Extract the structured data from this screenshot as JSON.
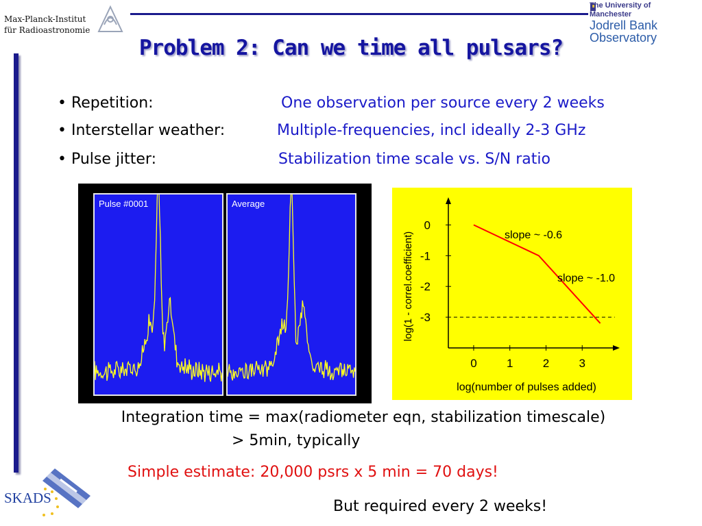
{
  "header": {
    "institute_line1": "Max-Planck-Institut",
    "institute_line2": "für Radioastronomie",
    "university": "The University of Manchester",
    "observatory_line1": "Jodrell Bank",
    "observatory_line2": "Observatory"
  },
  "title": "Problem 2: Can we time all pulsars?",
  "bullets": [
    {
      "label": "• Repetition:",
      "value": "One observation per source every 2 weeks"
    },
    {
      "label": "• Interstellar weather:",
      "value": "Multiple-frequencies, incl ideally  2-3 GHz"
    },
    {
      "label": "• Pulse jitter:",
      "value": "Stabilization time scale vs. S/N ratio"
    }
  ],
  "pulse_panels": {
    "left_label": "Pulse #0001",
    "right_label": "Average"
  },
  "chart_data": {
    "type": "line",
    "xlabel": "log(number of pulses added)",
    "ylabel": "log(1 - correl.coefficient)",
    "xticks": [
      "0",
      "1",
      "2",
      "3"
    ],
    "yticks": [
      "0",
      "-1",
      "-2",
      "-3"
    ],
    "xlim": [
      -0.7,
      4
    ],
    "ylim": [
      -4,
      0.9
    ],
    "series": [
      {
        "x": [
          0,
          1.8,
          3.5
        ],
        "y": [
          0,
          -1,
          -3.2
        ]
      }
    ],
    "reference_line": {
      "y": -3,
      "style": "dashed"
    },
    "annotations": [
      "slope ~ -0.6",
      "slope ~ -1.0"
    ],
    "line_color": "#ff0000",
    "background": "#ffff00"
  },
  "footer": {
    "integration": "Integration time = max(radiometer eqn, stabilization timescale)",
    "typical": "> 5min, typically",
    "estimate": "Simple estimate:  20,000 psrs x 5 min = 70 days!",
    "required": "But required every 2 weeks!",
    "skads": "SKADS"
  }
}
